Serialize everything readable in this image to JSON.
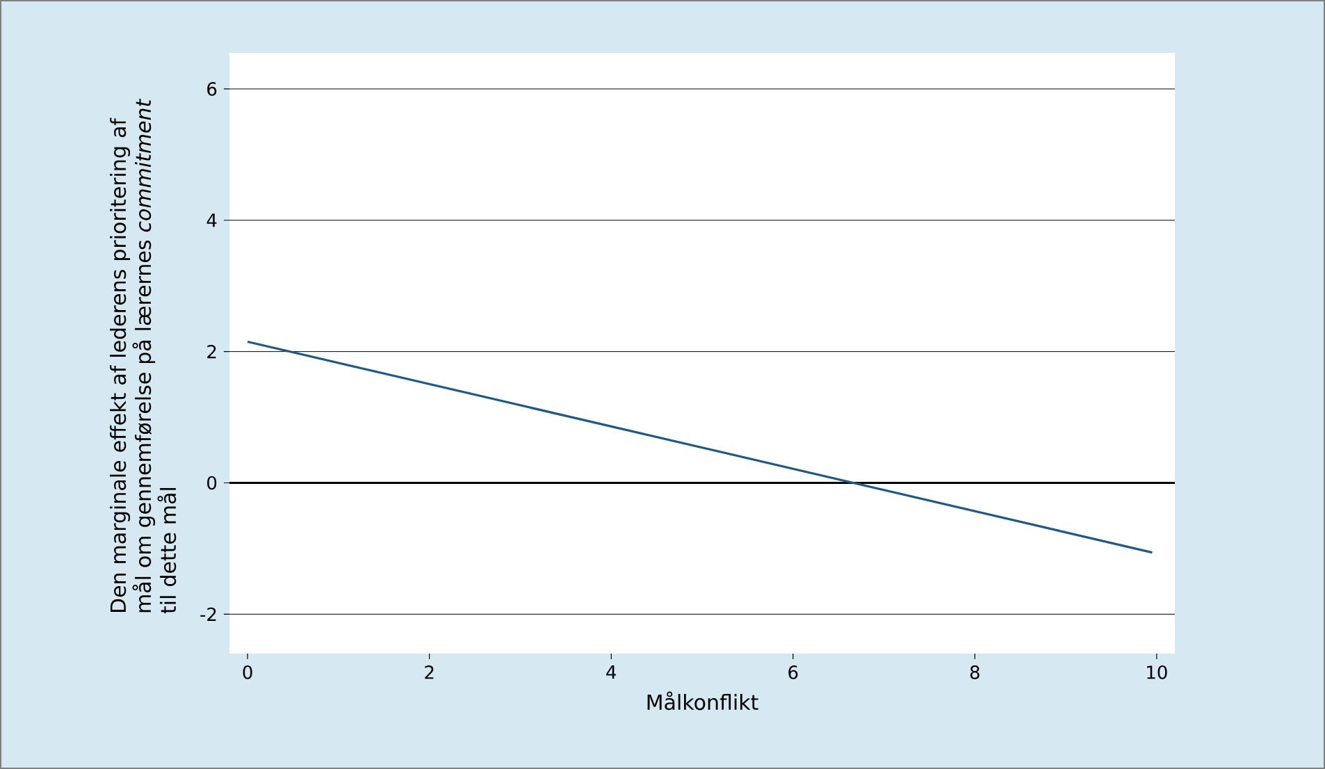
{
  "chart_data": {
    "type": "line",
    "xlabel": "Målkonflikt",
    "ylabel": "Den marginale effekt af lederens prioritering af mål om gennemførelse på lærernes *commitment* til dette mål",
    "x": [
      0,
      9.95
    ],
    "series": [
      {
        "color": "#1f5a85",
        "values": [
          2.15,
          -1.06
        ]
      }
    ],
    "xlim": [
      -0.2,
      10.2
    ],
    "ylim": [
      -2.6,
      6.55
    ],
    "xticks": [
      0,
      2,
      4,
      6,
      8,
      10
    ],
    "yticks": [
      -2,
      0,
      2,
      4,
      6
    ],
    "grid": "y",
    "ref_lines": [
      {
        "axis": "y",
        "value": 0,
        "color": "#000000"
      }
    ],
    "marker": "none",
    "line_style": "solid"
  }
}
